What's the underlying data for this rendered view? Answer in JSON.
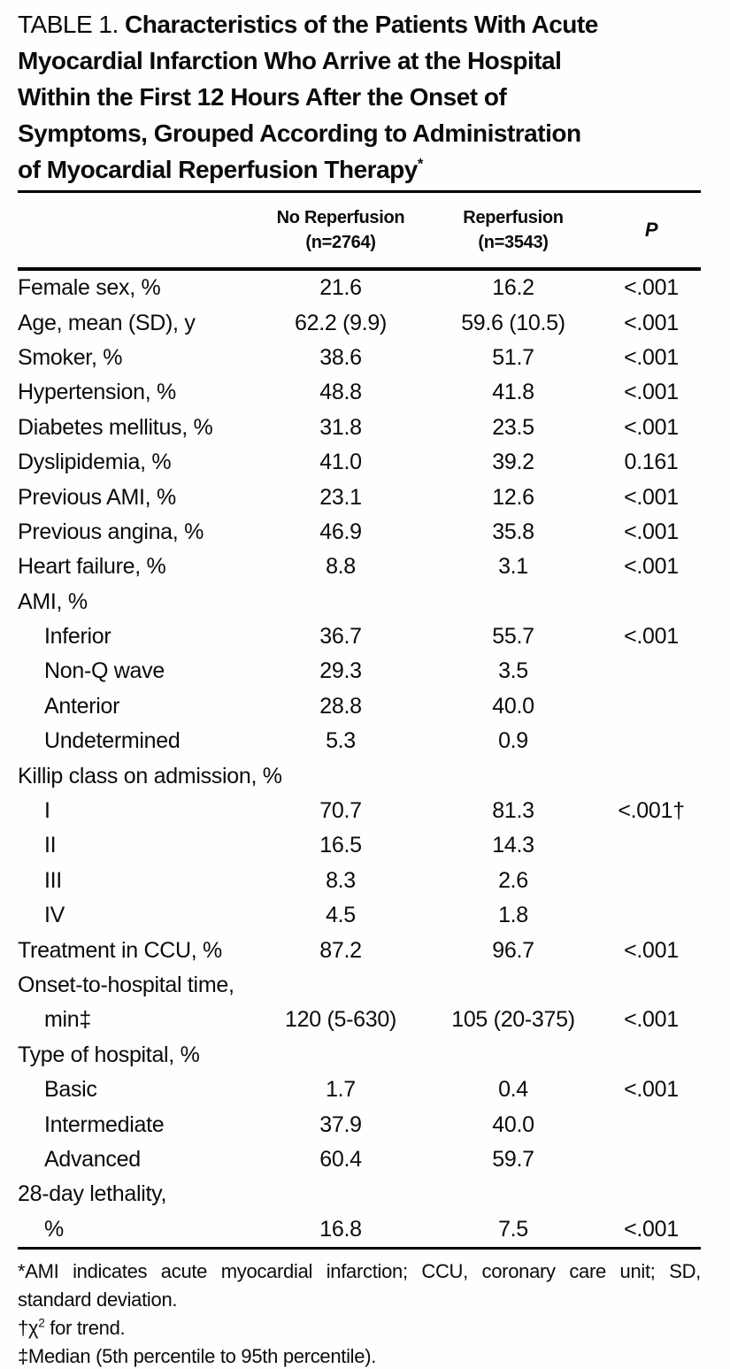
{
  "title": {
    "label": "TABLE 1.",
    "line1_bold": "Characteristics of the Patients With Acute",
    "line2": "Myocardial Infarction Who Arrive at the Hospital",
    "line3": "Within the First 12 Hours After the Onset of",
    "line4": "Symptoms, Grouped According to Administration",
    "line5": "of Myocardial Reperfusion Therapy",
    "footnote_marker": "*"
  },
  "header": {
    "col2_line1": "No Reperfusion",
    "col2_line2": "(n=2764)",
    "col3_line1": "Reperfusion",
    "col3_line2": "(n=3543)",
    "col4": "P"
  },
  "rows": [
    {
      "label": "Female sex, %",
      "indent": 0,
      "no_reperfusion": "21.6",
      "reperfusion": "16.2",
      "p": "<.001"
    },
    {
      "label": "Age, mean (SD), y",
      "indent": 0,
      "no_reperfusion": "62.2 (9.9)",
      "reperfusion": "59.6 (10.5)",
      "p": "<.001"
    },
    {
      "label": "Smoker, %",
      "indent": 0,
      "no_reperfusion": "38.6",
      "reperfusion": "51.7",
      "p": "<.001"
    },
    {
      "label": "Hypertension, %",
      "indent": 0,
      "no_reperfusion": "48.8",
      "reperfusion": "41.8",
      "p": "<.001"
    },
    {
      "label": "Diabetes mellitus, %",
      "indent": 0,
      "no_reperfusion": "31.8",
      "reperfusion": "23.5",
      "p": "<.001"
    },
    {
      "label": "Dyslipidemia, %",
      "indent": 0,
      "no_reperfusion": "41.0",
      "reperfusion": "39.2",
      "p": "0.161"
    },
    {
      "label": "Previous AMI, %",
      "indent": 0,
      "no_reperfusion": "23.1",
      "reperfusion": "12.6",
      "p": "<.001"
    },
    {
      "label": "Previous angina, %",
      "indent": 0,
      "no_reperfusion": "46.9",
      "reperfusion": "35.8",
      "p": "<.001"
    },
    {
      "label": "Heart failure, %",
      "indent": 0,
      "no_reperfusion": "8.8",
      "reperfusion": "3.1",
      "p": "<.001"
    },
    {
      "label": "AMI, %",
      "indent": 0,
      "no_reperfusion": "",
      "reperfusion": "",
      "p": ""
    },
    {
      "label": "Inferior",
      "indent": 1,
      "no_reperfusion": "36.7",
      "reperfusion": "55.7",
      "p": "<.001"
    },
    {
      "label": "Non-Q wave",
      "indent": 1,
      "no_reperfusion": "29.3",
      "reperfusion": "3.5",
      "p": ""
    },
    {
      "label": "Anterior",
      "indent": 1,
      "no_reperfusion": "28.8",
      "reperfusion": "40.0",
      "p": ""
    },
    {
      "label": "Undetermined",
      "indent": 1,
      "no_reperfusion": "5.3",
      "reperfusion": "0.9",
      "p": ""
    },
    {
      "label": "Killip class on admission, %",
      "indent": 0,
      "no_reperfusion": "",
      "reperfusion": "",
      "p": ""
    },
    {
      "label": "I",
      "indent": 1,
      "no_reperfusion": "70.7",
      "reperfusion": "81.3",
      "p": "<.001†"
    },
    {
      "label": "II",
      "indent": 1,
      "no_reperfusion": "16.5",
      "reperfusion": "14.3",
      "p": ""
    },
    {
      "label": "III",
      "indent": 1,
      "no_reperfusion": "8.3",
      "reperfusion": "2.6",
      "p": ""
    },
    {
      "label": "IV",
      "indent": 1,
      "no_reperfusion": "4.5",
      "reperfusion": "1.8",
      "p": ""
    },
    {
      "label": "Treatment in CCU, %",
      "indent": 0,
      "no_reperfusion": "87.2",
      "reperfusion": "96.7",
      "p": "<.001"
    },
    {
      "label": "Onset-to-hospital time,",
      "indent": 0,
      "no_reperfusion": "",
      "reperfusion": "",
      "p": ""
    },
    {
      "label": "min‡",
      "indent": 1,
      "no_reperfusion": "120 (5-630)",
      "reperfusion": "105 (20-375)",
      "p": "<.001"
    },
    {
      "label": "Type of hospital, %",
      "indent": 0,
      "no_reperfusion": "",
      "reperfusion": "",
      "p": ""
    },
    {
      "label": "Basic",
      "indent": 1,
      "no_reperfusion": "1.7",
      "reperfusion": "0.4",
      "p": "<.001"
    },
    {
      "label": "Intermediate",
      "indent": 1,
      "no_reperfusion": "37.9",
      "reperfusion": "40.0",
      "p": ""
    },
    {
      "label": "Advanced",
      "indent": 1,
      "no_reperfusion": "60.4",
      "reperfusion": "59.7",
      "p": ""
    },
    {
      "label": "28-day lethality,",
      "indent": 0,
      "no_reperfusion": "",
      "reperfusion": "",
      "p": ""
    },
    {
      "label": "%",
      "indent": 1,
      "no_reperfusion": "16.8",
      "reperfusion": "7.5",
      "p": "<.001"
    }
  ],
  "footnotes": {
    "fn1_line1": "*AMI indicates acute myocardial infarction; CCU, coronary care unit; SD,",
    "fn1_line2": "standard deviation.",
    "fn2_pre": "†χ",
    "fn2_sup": "2",
    "fn2_post": " for trend.",
    "fn3": "‡Median (5th percentile to 95th percentile)."
  }
}
